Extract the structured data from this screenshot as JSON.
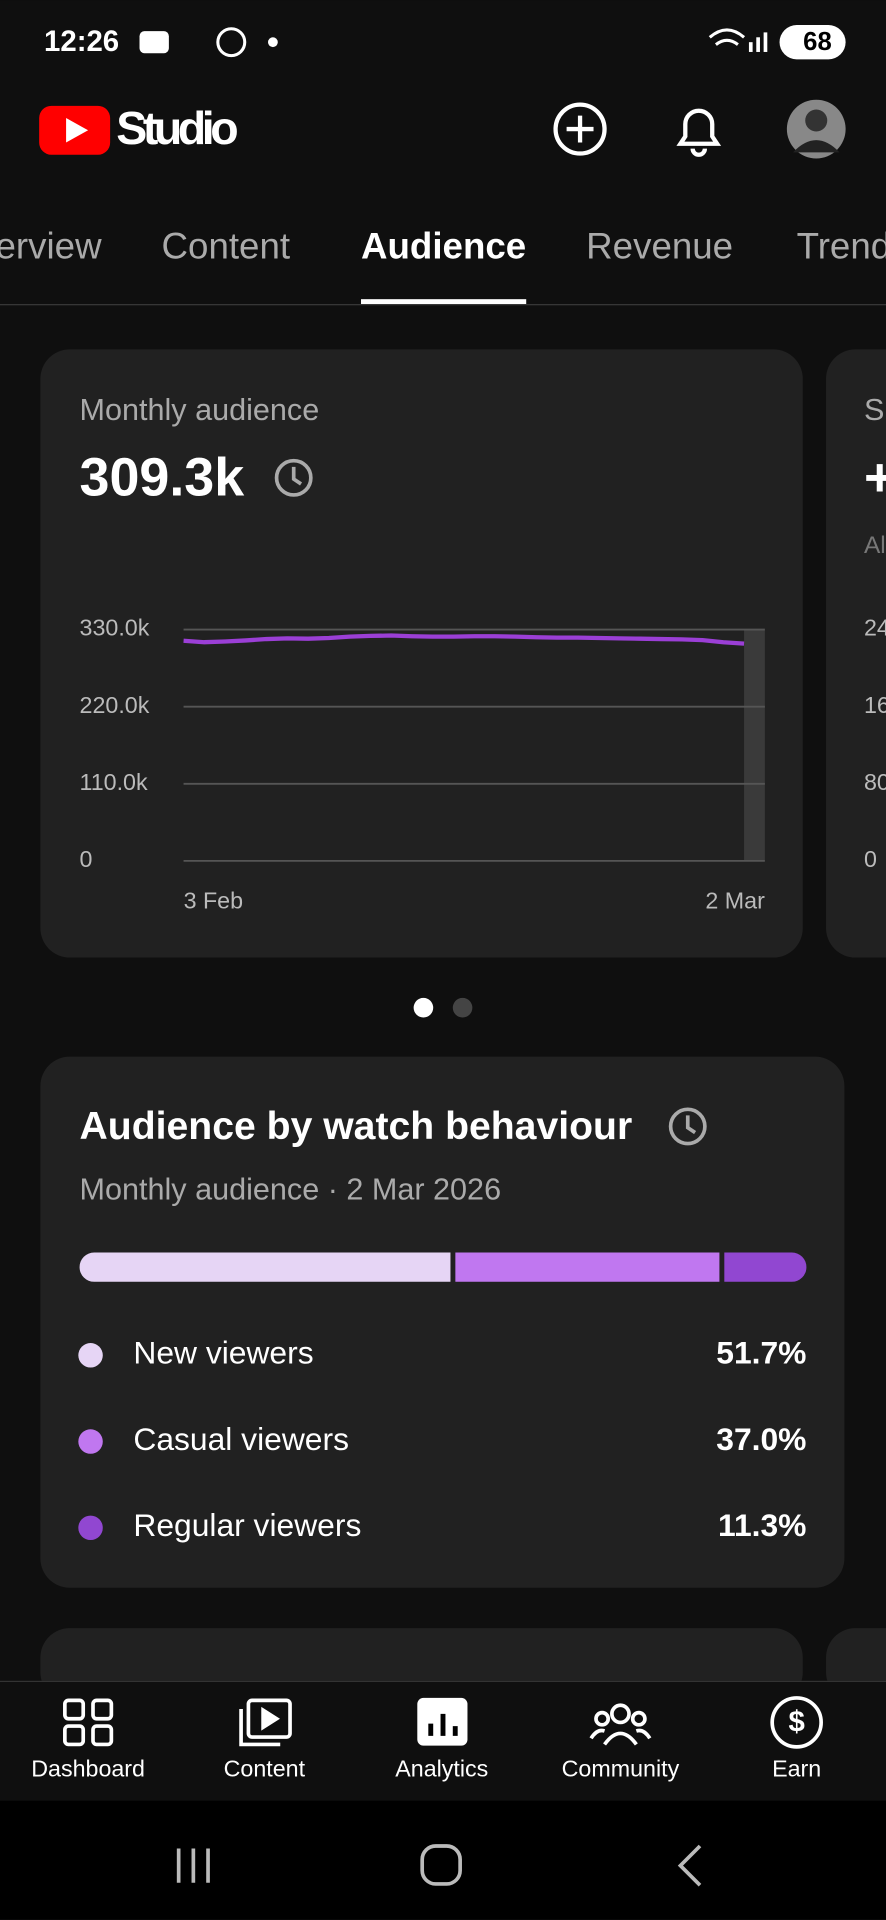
{
  "status_bar": {
    "time": "12:26",
    "battery": "68"
  },
  "header": {
    "title": "Studio"
  },
  "tabs": [
    "Overview",
    "Content",
    "Audience",
    "Revenue",
    "Trends"
  ],
  "monthly_audience_card": {
    "title": "Monthly audience",
    "value": "309.3k",
    "chart": {
      "type": "line",
      "color": "#9b3fd6",
      "categories": [
        "3 Feb",
        null,
        null,
        null,
        null,
        null,
        null,
        null,
        null,
        null,
        null,
        null,
        null,
        null,
        null,
        null,
        null,
        null,
        null,
        null,
        null,
        null,
        null,
        null,
        null,
        null,
        null,
        "2 Mar"
      ],
      "values": [
        314000,
        312000,
        313000,
        314500,
        316500,
        317500,
        317000,
        318000,
        320000,
        321000,
        321500,
        320500,
        320000,
        320000,
        320500,
        320500,
        320000,
        319000,
        318500,
        318500,
        318000,
        317500,
        317000,
        316500,
        316000,
        315000,
        312000,
        310000
      ],
      "ylim": [
        0,
        330000
      ],
      "yticks": [
        0,
        {
          "value": 110000,
          "label": "110.0k"
        },
        {
          "value": 220000,
          "label": "220.0k"
        },
        {
          "value": 330000,
          "label": "330.0k"
        }
      ],
      "grid": true
    }
  },
  "peek_card": {
    "title": "S",
    "value": "+",
    "subtitle": "Al",
    "ticks": [
      "24",
      "16",
      "80",
      "0"
    ]
  },
  "behaviour_card": {
    "title": "Audience by watch behaviour",
    "subtitle": "Monthly audience · 2 Mar 2026",
    "chart": {
      "type": "stacked-bar",
      "series": [
        {
          "name": "New viewers",
          "color": "#e6d5f5",
          "values": [
            51.7
          ],
          "value_labels": [
            "51.7%"
          ]
        },
        {
          "name": "Casual viewers",
          "color": "#c077f0",
          "values": [
            37.0
          ],
          "value_labels": [
            "37.0%"
          ]
        },
        {
          "name": "Regular viewers",
          "color": "#9147d1",
          "values": [
            11.3
          ],
          "value_labels": [
            "11.3%"
          ]
        }
      ]
    }
  },
  "bottom_nav": [
    "Dashboard",
    "Content",
    "Analytics",
    "Community",
    "Earn"
  ]
}
